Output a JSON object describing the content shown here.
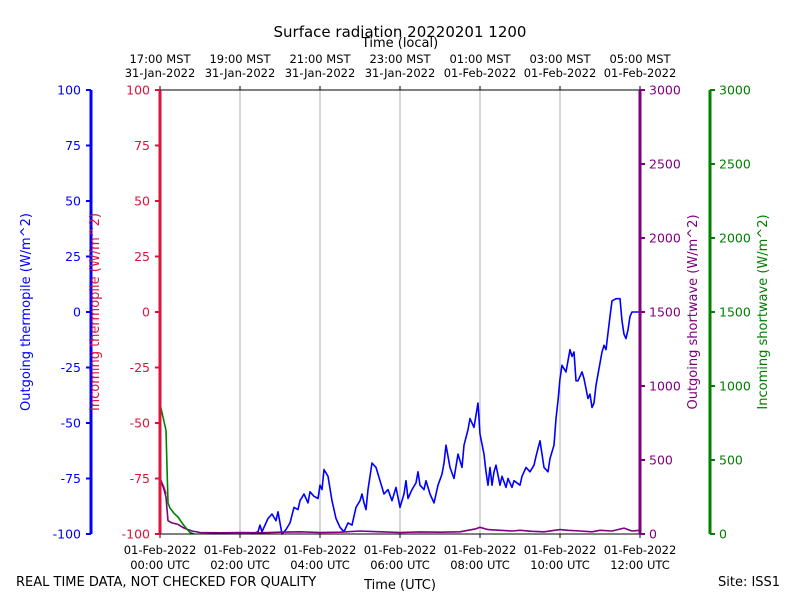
{
  "chart_data": {
    "type": "line",
    "title": "Surface radiation 20220201 1200",
    "xlabel": "Time (UTC)",
    "x2label": "Time (local)",
    "x_ticks_utc": [
      {
        "hours": 0,
        "date": "01-Feb-2022",
        "time": "00:00 UTC"
      },
      {
        "hours": 2,
        "date": "01-Feb-2022",
        "time": "02:00 UTC"
      },
      {
        "hours": 4,
        "date": "01-Feb-2022",
        "time": "04:00 UTC"
      },
      {
        "hours": 6,
        "date": "01-Feb-2022",
        "time": "06:00 UTC"
      },
      {
        "hours": 8,
        "date": "01-Feb-2022",
        "time": "08:00 UTC"
      },
      {
        "hours": 10,
        "date": "01-Feb-2022",
        "time": "10:00 UTC"
      },
      {
        "hours": 12,
        "date": "01-Feb-2022",
        "time": "12:00 UTC"
      }
    ],
    "x_ticks_local": [
      {
        "hours": 0,
        "time": "17:00 MST",
        "date": "31-Jan-2022"
      },
      {
        "hours": 2,
        "time": "19:00 MST",
        "date": "31-Jan-2022"
      },
      {
        "hours": 4,
        "time": "21:00 MST",
        "date": "31-Jan-2022"
      },
      {
        "hours": 6,
        "time": "23:00 MST",
        "date": "31-Jan-2022"
      },
      {
        "hours": 8,
        "time": "01:00 MST",
        "date": "01-Feb-2022"
      },
      {
        "hours": 10,
        "time": "03:00 MST",
        "date": "01-Feb-2022"
      },
      {
        "hours": 12,
        "time": "05:00 MST",
        "date": "01-Feb-2022"
      }
    ],
    "xlim": [
      0,
      12
    ],
    "grid": "vertical",
    "axes": [
      {
        "id": "out_thermo",
        "label": "Outgoing thermopile (W/m^2)",
        "color": "#0000ff",
        "ylim": [
          -100,
          100
        ],
        "ticks": [
          -100,
          -75,
          -50,
          -25,
          0,
          25,
          50,
          75,
          100
        ]
      },
      {
        "id": "in_thermo",
        "label": "Incoming thermopile (W/m^2)",
        "color": "#dc143c",
        "ylim": [
          -100,
          100
        ],
        "ticks": [
          -100,
          -75,
          -50,
          -25,
          0,
          25,
          50,
          75,
          100
        ]
      },
      {
        "id": "out_sw",
        "label": "Outgoing shortwave (W/m^2)",
        "color": "#800080",
        "ylim": [
          0,
          3000
        ],
        "ticks": [
          0,
          500,
          1000,
          1500,
          2000,
          2500,
          3000
        ]
      },
      {
        "id": "in_sw",
        "label": "Incoming shortwave (W/m^2)",
        "color": "#008000",
        "ylim": [
          0,
          3000
        ],
        "ticks": [
          0,
          500,
          1000,
          1500,
          2000,
          2500,
          3000
        ]
      }
    ],
    "series": [
      {
        "name": "Outgoing thermopile",
        "axis": "out_thermo",
        "color": "#0000ff",
        "points": [
          [
            2.3,
            -100
          ],
          [
            2.45,
            -99
          ],
          [
            2.5,
            -96
          ],
          [
            2.55,
            -99
          ],
          [
            2.6,
            -97
          ],
          [
            2.7,
            -93
          ],
          [
            2.8,
            -91
          ],
          [
            2.9,
            -94
          ],
          [
            2.95,
            -90
          ],
          [
            3.05,
            -100
          ],
          [
            3.15,
            -98
          ],
          [
            3.25,
            -95
          ],
          [
            3.35,
            -88
          ],
          [
            3.45,
            -89
          ],
          [
            3.5,
            -85
          ],
          [
            3.6,
            -82
          ],
          [
            3.7,
            -86
          ],
          [
            3.75,
            -81
          ],
          [
            3.85,
            -83
          ],
          [
            3.95,
            -84
          ],
          [
            4.0,
            -78
          ],
          [
            4.05,
            -80
          ],
          [
            4.1,
            -71
          ],
          [
            4.2,
            -74
          ],
          [
            4.3,
            -85
          ],
          [
            4.4,
            -93
          ],
          [
            4.5,
            -97
          ],
          [
            4.6,
            -99
          ],
          [
            4.7,
            -95
          ],
          [
            4.8,
            -96
          ],
          [
            4.9,
            -88
          ],
          [
            5.0,
            -85
          ],
          [
            5.05,
            -82
          ],
          [
            5.1,
            -86
          ],
          [
            5.15,
            -89
          ],
          [
            5.2,
            -80
          ],
          [
            5.3,
            -68
          ],
          [
            5.4,
            -70
          ],
          [
            5.5,
            -76
          ],
          [
            5.6,
            -82
          ],
          [
            5.7,
            -80
          ],
          [
            5.8,
            -85
          ],
          [
            5.9,
            -79
          ],
          [
            6.0,
            -88
          ],
          [
            6.1,
            -82
          ],
          [
            6.15,
            -76
          ],
          [
            6.2,
            -84
          ],
          [
            6.3,
            -80
          ],
          [
            6.4,
            -77
          ],
          [
            6.45,
            -72
          ],
          [
            6.5,
            -78
          ],
          [
            6.6,
            -80
          ],
          [
            6.65,
            -76
          ],
          [
            6.75,
            -82
          ],
          [
            6.85,
            -86
          ],
          [
            6.95,
            -78
          ],
          [
            7.05,
            -73
          ],
          [
            7.1,
            -68
          ],
          [
            7.15,
            -60
          ],
          [
            7.25,
            -70
          ],
          [
            7.35,
            -75
          ],
          [
            7.45,
            -64
          ],
          [
            7.55,
            -70
          ],
          [
            7.6,
            -60
          ],
          [
            7.7,
            -53
          ],
          [
            7.75,
            -48
          ],
          [
            7.85,
            -52
          ],
          [
            7.95,
            -41
          ],
          [
            8.0,
            -55
          ],
          [
            8.1,
            -64
          ],
          [
            8.15,
            -72
          ],
          [
            8.2,
            -78
          ],
          [
            8.25,
            -70
          ],
          [
            8.3,
            -78
          ],
          [
            8.35,
            -72
          ],
          [
            8.4,
            -69
          ],
          [
            8.5,
            -78
          ],
          [
            8.55,
            -74
          ],
          [
            8.65,
            -79
          ],
          [
            8.7,
            -75
          ],
          [
            8.8,
            -79
          ],
          [
            8.85,
            -76
          ],
          [
            9.0,
            -78
          ],
          [
            9.05,
            -74
          ],
          [
            9.15,
            -70
          ],
          [
            9.25,
            -72
          ],
          [
            9.35,
            -69
          ],
          [
            9.4,
            -65
          ],
          [
            9.5,
            -58
          ],
          [
            9.6,
            -70
          ],
          [
            9.7,
            -72
          ],
          [
            9.75,
            -66
          ],
          [
            9.85,
            -60
          ],
          [
            9.9,
            -48
          ],
          [
            9.95,
            -40
          ],
          [
            10.0,
            -30
          ],
          [
            10.05,
            -24
          ],
          [
            10.15,
            -27
          ],
          [
            10.2,
            -22
          ],
          [
            10.25,
            -17
          ],
          [
            10.3,
            -20
          ],
          [
            10.35,
            -18
          ],
          [
            10.4,
            -31
          ],
          [
            10.45,
            -31
          ],
          [
            10.55,
            -27
          ],
          [
            10.6,
            -30
          ],
          [
            10.7,
            -39
          ],
          [
            10.75,
            -37
          ],
          [
            10.8,
            -43
          ],
          [
            10.85,
            -41
          ],
          [
            10.9,
            -33
          ],
          [
            10.95,
            -28
          ],
          [
            11.0,
            -23
          ],
          [
            11.05,
            -18
          ],
          [
            11.1,
            -15
          ],
          [
            11.15,
            -17
          ],
          [
            11.25,
            -2
          ],
          [
            11.3,
            5
          ],
          [
            11.4,
            6
          ],
          [
            11.5,
            6
          ],
          [
            11.55,
            -4
          ],
          [
            11.6,
            -10
          ],
          [
            11.65,
            -12
          ],
          [
            11.7,
            -8
          ],
          [
            11.75,
            -2
          ],
          [
            11.8,
            0
          ],
          [
            12.0,
            0
          ]
        ]
      },
      {
        "name": "Incoming thermopile",
        "axis": "in_thermo",
        "color": "#dc143c",
        "points": [
          [
            0.0,
            -75
          ],
          [
            0.05,
            -77
          ],
          [
            0.1,
            -79
          ],
          [
            0.15,
            -82
          ]
        ]
      },
      {
        "name": "Outgoing shortwave",
        "axis": "out_sw",
        "color": "#800080",
        "points": [
          [
            0.0,
            380
          ],
          [
            0.05,
            340
          ],
          [
            0.1,
            300
          ],
          [
            0.15,
            250
          ],
          [
            0.2,
            90
          ],
          [
            0.3,
            75
          ],
          [
            0.45,
            65
          ],
          [
            0.6,
            40
          ],
          [
            0.8,
            20
          ],
          [
            1.0,
            10
          ],
          [
            1.5,
            8
          ],
          [
            2.0,
            10
          ],
          [
            2.5,
            8
          ],
          [
            3.0,
            12
          ],
          [
            3.5,
            15
          ],
          [
            4.0,
            10
          ],
          [
            4.5,
            12
          ],
          [
            5.0,
            20
          ],
          [
            5.5,
            15
          ],
          [
            6.0,
            10
          ],
          [
            6.5,
            14
          ],
          [
            7.0,
            12
          ],
          [
            7.5,
            15
          ],
          [
            7.9,
            35
          ],
          [
            8.0,
            45
          ],
          [
            8.2,
            30
          ],
          [
            8.5,
            25
          ],
          [
            8.8,
            20
          ],
          [
            9.0,
            25
          ],
          [
            9.3,
            18
          ],
          [
            9.6,
            15
          ],
          [
            10.0,
            30
          ],
          [
            10.2,
            25
          ],
          [
            10.5,
            20
          ],
          [
            10.8,
            15
          ],
          [
            11.0,
            25
          ],
          [
            11.3,
            20
          ],
          [
            11.6,
            40
          ],
          [
            11.8,
            20
          ],
          [
            12.0,
            25
          ]
        ]
      },
      {
        "name": "Incoming shortwave",
        "axis": "in_sw",
        "color": "#008000",
        "points": [
          [
            0.0,
            880
          ],
          [
            0.05,
            820
          ],
          [
            0.1,
            760
          ],
          [
            0.15,
            700
          ],
          [
            0.2,
            210
          ],
          [
            0.25,
            175
          ],
          [
            0.35,
            140
          ],
          [
            0.45,
            115
          ],
          [
            0.55,
            75
          ],
          [
            0.65,
            40
          ],
          [
            0.75,
            10
          ],
          [
            0.85,
            0
          ]
        ]
      }
    ]
  },
  "footer": {
    "left": "REAL TIME DATA, NOT CHECKED FOR QUALITY",
    "right": "Site: ISS1"
  }
}
